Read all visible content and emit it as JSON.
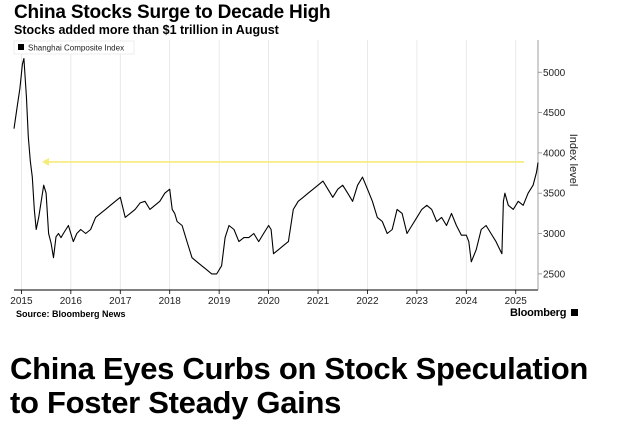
{
  "chart_data": {
    "type": "line",
    "title": "China Stocks Surge to Decade High",
    "subtitle": "Stocks added more than $1 trillion in August",
    "ylabel": "Index level",
    "xlabel": "",
    "x_ticks": [
      "2015",
      "2016",
      "2017",
      "2018",
      "2019",
      "2020",
      "2021",
      "2022",
      "2023",
      "2024",
      "2025"
    ],
    "y_ticks": [
      2500,
      3000,
      3500,
      4000,
      4500,
      5000
    ],
    "xlim": [
      2014.85,
      2025.45
    ],
    "ylim": [
      2300,
      5400
    ],
    "grid": "vertical",
    "legend_position": "top-left",
    "series": [
      {
        "name": "Shanghai Composite Index",
        "color": "#000000",
        "x": [
          2014.85,
          2014.92,
          2014.97,
          2015.02,
          2015.05,
          2015.1,
          2015.14,
          2015.18,
          2015.22,
          2015.26,
          2015.3,
          2015.35,
          2015.4,
          2015.45,
          2015.5,
          2015.55,
          2015.6,
          2015.65,
          2015.7,
          2015.75,
          2015.8,
          2015.85,
          2015.9,
          2015.95,
          2016.05,
          2016.12,
          2016.2,
          2016.3,
          2016.4,
          2016.5,
          2016.6,
          2016.7,
          2016.8,
          2016.9,
          2017.0,
          2017.1,
          2017.2,
          2017.3,
          2017.4,
          2017.5,
          2017.6,
          2017.7,
          2017.8,
          2017.9,
          2018.0,
          2018.05,
          2018.1,
          2018.15,
          2018.25,
          2018.35,
          2018.45,
          2018.55,
          2018.65,
          2018.75,
          2018.85,
          2018.95,
          2019.05,
          2019.12,
          2019.2,
          2019.3,
          2019.4,
          2019.5,
          2019.6,
          2019.7,
          2019.8,
          2019.9,
          2020.0,
          2020.05,
          2020.1,
          2020.2,
          2020.3,
          2020.4,
          2020.5,
          2020.55,
          2020.6,
          2020.7,
          2020.8,
          2020.9,
          2021.0,
          2021.1,
          2021.2,
          2021.3,
          2021.4,
          2021.5,
          2021.6,
          2021.7,
          2021.8,
          2021.9,
          2022.0,
          2022.1,
          2022.2,
          2022.3,
          2022.4,
          2022.5,
          2022.6,
          2022.7,
          2022.8,
          2022.9,
          2023.0,
          2023.1,
          2023.2,
          2023.3,
          2023.4,
          2023.5,
          2023.6,
          2023.7,
          2023.8,
          2023.9,
          2024.0,
          2024.05,
          2024.1,
          2024.2,
          2024.3,
          2024.4,
          2024.5,
          2024.6,
          2024.68,
          2024.72,
          2024.75,
          2024.78,
          2024.85,
          2024.95,
          2025.05,
          2025.15,
          2025.25,
          2025.35,
          2025.42,
          2025.45
        ],
        "values": [
          4300,
          4600,
          4800,
          5100,
          5170,
          4700,
          4200,
          3900,
          3700,
          3300,
          3050,
          3200,
          3400,
          3600,
          3500,
          3000,
          2880,
          2700,
          2960,
          3000,
          2950,
          3000,
          3050,
          3100,
          2900,
          3000,
          3050,
          3000,
          3050,
          3200,
          3250,
          3300,
          3350,
          3400,
          3450,
          3200,
          3250,
          3300,
          3380,
          3400,
          3300,
          3350,
          3400,
          3500,
          3550,
          3300,
          3250,
          3150,
          3100,
          2900,
          2700,
          2650,
          2600,
          2550,
          2500,
          2500,
          2600,
          2950,
          3100,
          3050,
          2900,
          2950,
          2950,
          3000,
          2900,
          3000,
          3100,
          3050,
          2750,
          2800,
          2850,
          2900,
          3300,
          3350,
          3400,
          3450,
          3500,
          3550,
          3600,
          3650,
          3550,
          3450,
          3550,
          3600,
          3500,
          3400,
          3600,
          3700,
          3550,
          3400,
          3200,
          3150,
          3000,
          3050,
          3300,
          3250,
          3000,
          3100,
          3200,
          3300,
          3350,
          3300,
          3150,
          3200,
          3100,
          3250,
          3100,
          2980,
          2980,
          2900,
          2650,
          2800,
          3050,
          3100,
          3000,
          2900,
          2800,
          2750,
          3400,
          3500,
          3350,
          3300,
          3400,
          3350,
          3500,
          3600,
          3760,
          3880
        ]
      }
    ],
    "reference_line": {
      "value": 3888,
      "style": "dashed-arrow",
      "color": "#f5ec7a"
    }
  },
  "legend_label": "Shanghai Composite Index",
  "source": "Source: Bloomberg News",
  "brand": "Bloomberg",
  "headline": "China Eyes Curbs on Stock Speculation to Foster Steady Gains"
}
